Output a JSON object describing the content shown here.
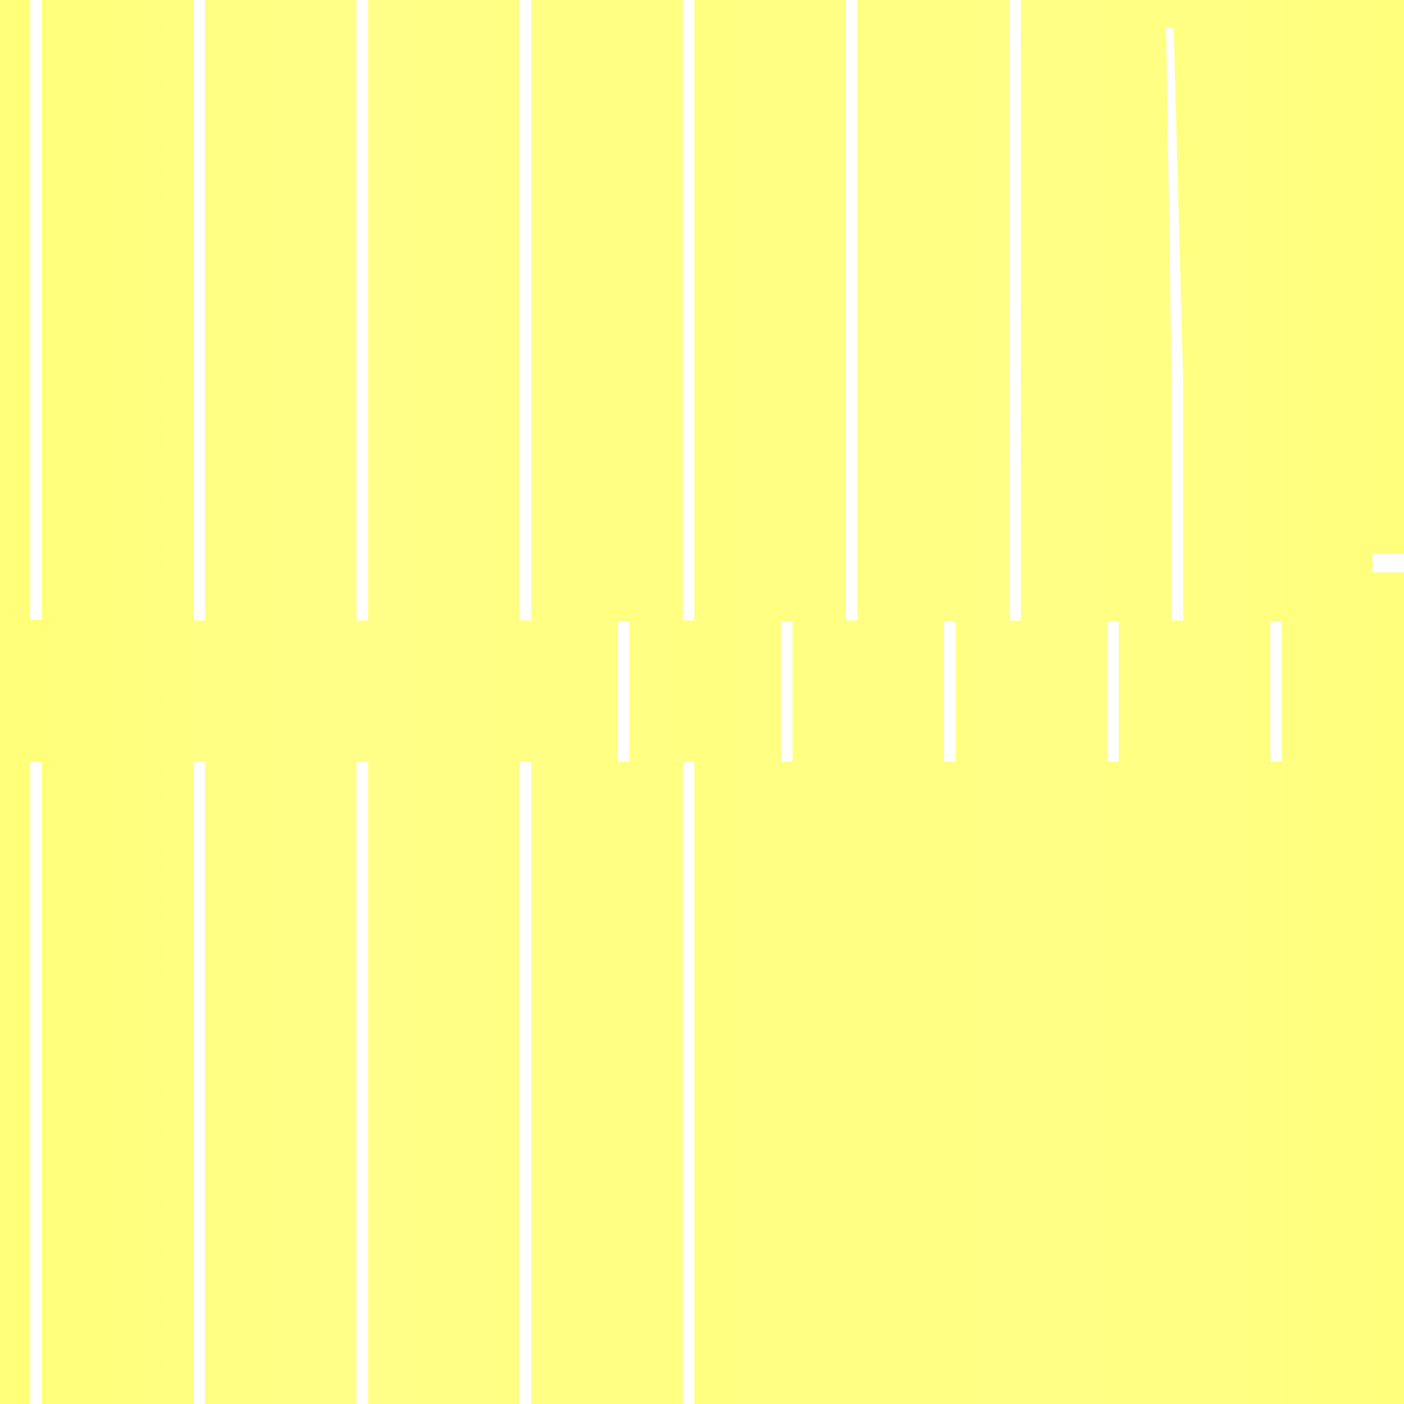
{
  "colors": {
    "background": "#ffff80",
    "background_light": "#ffffa0",
    "background_dark": "#ffff70",
    "line": "#ffffff"
  }
}
